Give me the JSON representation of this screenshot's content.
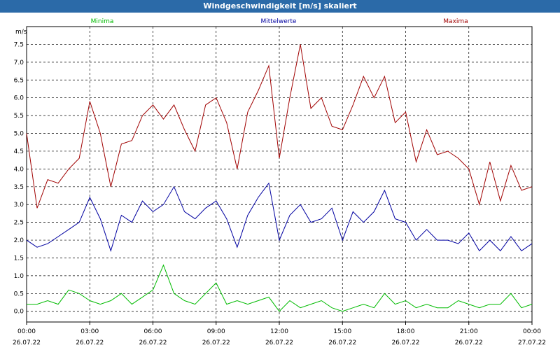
{
  "window": {
    "title": "Windgeschwindigkeit [m/s] skaliert"
  },
  "legend": {
    "min": "Minima",
    "mean": "Mittelwerte",
    "max": "Maxima"
  },
  "colors": {
    "min": "#00bb00",
    "mean": "#0000a0",
    "max": "#a00000",
    "title_bar": "#2b6aa8"
  },
  "chart_data": {
    "type": "line",
    "title": "Windgeschwindigkeit [m/s] skaliert",
    "ylabel": "m/s",
    "xlabel": "",
    "ylim": [
      -0.3,
      8.0
    ],
    "grid": true,
    "legend_placement": "top",
    "yticks": [
      "0.0",
      "0.5",
      "1.0",
      "1.5",
      "2.0",
      "2.5",
      "3.0",
      "3.5",
      "4.0",
      "4.5",
      "5.0",
      "5.5",
      "6.0",
      "6.5",
      "7.0",
      "7.5"
    ],
    "xticks": [
      {
        "time": "00:00",
        "date": "26.07.22"
      },
      {
        "time": "03:00",
        "date": "26.07.22"
      },
      {
        "time": "06:00",
        "date": "26.07.22"
      },
      {
        "time": "09:00",
        "date": "26.07.22"
      },
      {
        "time": "12:00",
        "date": "26.07.22"
      },
      {
        "time": "15:00",
        "date": "26.07.22"
      },
      {
        "time": "18:00",
        "date": "26.07.22"
      },
      {
        "time": "21:00",
        "date": "26.07.22"
      },
      {
        "time": "00:00",
        "date": "27.07.22"
      }
    ],
    "x_hours": [
      0,
      0.5,
      1,
      1.5,
      2,
      2.5,
      3,
      3.5,
      4,
      4.5,
      5,
      5.5,
      6,
      6.5,
      7,
      7.5,
      8,
      8.5,
      9,
      9.5,
      10,
      10.5,
      11,
      11.5,
      12,
      12.5,
      13,
      13.5,
      14,
      14.5,
      15,
      15.5,
      16,
      16.5,
      17,
      17.5,
      18,
      18.5,
      19,
      19.5,
      20,
      20.5,
      21,
      21.5,
      22,
      22.5,
      23,
      23.5,
      24
    ],
    "series": [
      {
        "name": "Maxima",
        "values": [
          5.0,
          2.9,
          3.7,
          3.6,
          4.0,
          4.3,
          5.9,
          5.0,
          3.5,
          4.7,
          4.8,
          5.5,
          5.8,
          5.4,
          5.8,
          5.1,
          4.5,
          5.8,
          6.0,
          5.3,
          4.0,
          5.6,
          6.2,
          6.9,
          4.3,
          6.0,
          7.5,
          5.7,
          6.0,
          5.2,
          5.1,
          5.8,
          6.6,
          6.0,
          6.6,
          5.3,
          5.6,
          4.2,
          5.1,
          4.4,
          4.5,
          4.3,
          4.0,
          3.0,
          4.2,
          3.1,
          4.1,
          3.4,
          3.5
        ]
      },
      {
        "name": "Mittelwerte",
        "values": [
          2.0,
          1.8,
          1.9,
          2.1,
          2.3,
          2.5,
          3.2,
          2.6,
          1.7,
          2.7,
          2.5,
          3.1,
          2.8,
          3.0,
          3.5,
          2.8,
          2.6,
          2.9,
          3.1,
          2.6,
          1.8,
          2.7,
          3.2,
          3.6,
          2.0,
          2.7,
          3.0,
          2.5,
          2.6,
          2.9,
          2.0,
          2.8,
          2.5,
          2.8,
          3.4,
          2.6,
          2.5,
          2.0,
          2.3,
          2.0,
          2.0,
          1.9,
          2.2,
          1.7,
          2.0,
          1.7,
          2.1,
          1.7,
          1.9
        ]
      },
      {
        "name": "Minima",
        "values": [
          0.2,
          0.2,
          0.3,
          0.2,
          0.6,
          0.5,
          0.3,
          0.2,
          0.3,
          0.5,
          0.2,
          0.4,
          0.6,
          1.3,
          0.5,
          0.3,
          0.2,
          0.5,
          0.8,
          0.2,
          0.3,
          0.2,
          0.3,
          0.4,
          0.0,
          0.3,
          0.1,
          0.2,
          0.3,
          0.1,
          0.0,
          0.1,
          0.2,
          0.1,
          0.5,
          0.2,
          0.3,
          0.1,
          0.2,
          0.1,
          0.1,
          0.3,
          0.2,
          0.1,
          0.2,
          0.2,
          0.5,
          0.1,
          0.2
        ]
      }
    ]
  }
}
